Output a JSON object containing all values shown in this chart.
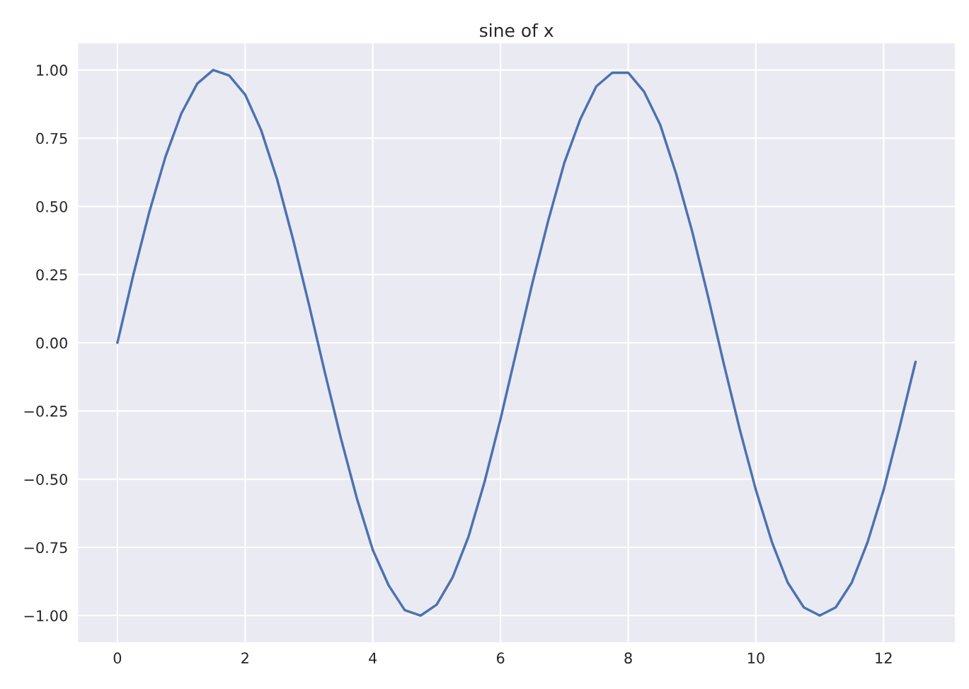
{
  "chart_data": {
    "type": "line",
    "title": "sine of x",
    "x": [
      0,
      0.25,
      0.5,
      0.75,
      1,
      1.25,
      1.5,
      1.75,
      2,
      2.25,
      2.5,
      2.75,
      3,
      3.25,
      3.5,
      3.75,
      4,
      4.25,
      4.5,
      4.75,
      5,
      5.25,
      5.5,
      5.75,
      6,
      6.25,
      6.5,
      6.75,
      7,
      7.25,
      7.5,
      7.75,
      8,
      8.25,
      8.5,
      8.75,
      9,
      9.25,
      9.5,
      9.75,
      10,
      10.25,
      10.5,
      10.75,
      11,
      11.25,
      11.5,
      11.75,
      12,
      12.25,
      12.5
    ],
    "series": [
      {
        "color": "#4c72b0",
        "values": [
          0,
          0.25,
          0.48,
          0.68,
          0.84,
          0.95,
          1.0,
          0.98,
          0.91,
          0.78,
          0.6,
          0.38,
          0.14,
          -0.11,
          -0.35,
          -0.57,
          -0.76,
          -0.89,
          -0.98,
          -1.0,
          -0.96,
          -0.86,
          -0.71,
          -0.51,
          -0.28,
          -0.03,
          0.22,
          0.45,
          0.66,
          0.82,
          0.94,
          0.99,
          0.99,
          0.92,
          0.8,
          0.62,
          0.41,
          0.17,
          -0.08,
          -0.32,
          -0.54,
          -0.73,
          -0.88,
          -0.97,
          -1.0,
          -0.97,
          -0.88,
          -0.73,
          -0.54,
          -0.31,
          -0.07
        ]
      }
    ],
    "xlim": [
      -0.625,
      13.125
    ],
    "ylim": [
      -1.1,
      1.1
    ],
    "xticks": [
      0,
      2,
      4,
      6,
      8,
      10,
      12
    ],
    "yticks": [
      {
        "value": -1,
        "label": "−1.00"
      },
      {
        "value": -0.75,
        "label": "−0.75"
      },
      {
        "value": -0.5,
        "label": "−0.50"
      },
      {
        "value": -0.25,
        "label": "−0.25"
      },
      {
        "value": 0,
        "label": "0.00"
      },
      {
        "value": 0.25,
        "label": "0.25"
      },
      {
        "value": 0.5,
        "label": "0.50"
      },
      {
        "value": 0.75,
        "label": "0.75"
      },
      {
        "value": 1,
        "label": "1.00"
      }
    ],
    "grid": true
  }
}
